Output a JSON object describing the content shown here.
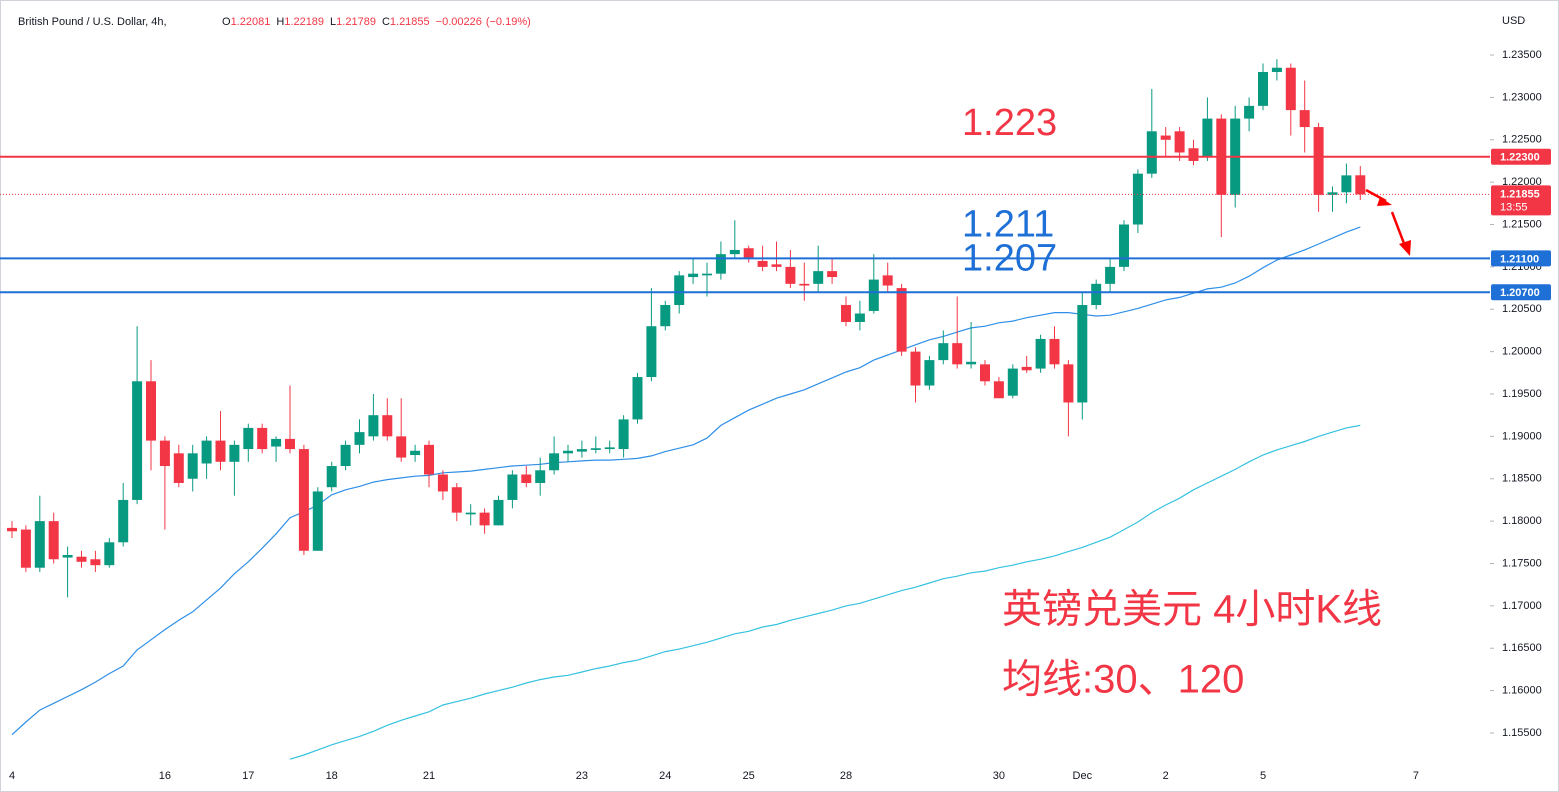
{
  "chart_data": {
    "type": "candlestick",
    "title": "British Pound / U.S. Dollar, 4h,",
    "ohlc_header": [
      {
        "label": "O",
        "value": 1.22081
      },
      {
        "label": "H",
        "value": 1.22189
      },
      {
        "label": "L",
        "value": 1.21789
      },
      {
        "label": "C",
        "value": 1.21855
      }
    ],
    "change": {
      "value": -0.00226,
      "label": "−0.00226"
    },
    "change_pct": {
      "value": -0.19,
      "label": "(−0.19%)"
    },
    "currency": "USD",
    "categories": [
      "4",
      null,
      null,
      null,
      null,
      null,
      null,
      null,
      null,
      null,
      null,
      "16",
      null,
      null,
      null,
      null,
      null,
      "17",
      null,
      null,
      null,
      null,
      null,
      "18",
      null,
      null,
      null,
      null,
      null,
      null,
      "21",
      null,
      null,
      null,
      null,
      null,
      null,
      null,
      null,
      null,
      null,
      "23",
      null,
      null,
      null,
      null,
      null,
      "24",
      null,
      null,
      null,
      null,
      null,
      "25",
      null,
      null,
      null,
      null,
      null,
      null,
      "28",
      null,
      null,
      null,
      null,
      null,
      null,
      null,
      null,
      null,
      null,
      "30",
      null,
      null,
      null,
      null,
      null,
      "Dec",
      null,
      null,
      null,
      null,
      null,
      "2",
      null,
      null,
      null,
      null,
      null,
      null,
      "5",
      null,
      null,
      null,
      null,
      null,
      null,
      null,
      null,
      null,
      null,
      "7"
    ],
    "open": [
      1.1792,
      1.179,
      1.1745,
      1.18,
      1.1757,
      1.1758,
      1.1755,
      1.1748,
      1.1775,
      1.1825,
      1.1965,
      1.1895,
      1.188,
      1.185,
      1.1868,
      1.1895,
      1.187,
      1.1885,
      1.191,
      1.1888,
      1.1897,
      1.1885,
      1.1765,
      1.184,
      1.1865,
      1.189,
      1.19,
      1.1925,
      1.19,
      1.1878,
      1.189,
      1.1855,
      1.184,
      1.1808,
      1.181,
      1.1795,
      1.1825,
      1.1855,
      1.1845,
      1.186,
      1.188,
      1.1882,
      1.1884,
      1.1885,
      1.1885,
      1.192,
      1.197,
      1.203,
      1.2055,
      1.2088,
      1.209,
      1.2092,
      1.2115,
      1.2122,
      1.2107,
      1.2103,
      1.21,
      1.208,
      1.208,
      1.2095,
      1.2055,
      1.2035,
      1.2048,
      1.209,
      1.2075,
      1.2,
      1.196,
      1.199,
      1.201,
      1.1985,
      1.1985,
      1.1965,
      1.1948,
      1.1982,
      1.198,
      1.2015,
      1.1985,
      1.194,
      1.2055,
      1.208,
      1.21,
      1.215,
      1.221,
      1.2255,
      1.226,
      1.224,
      1.223,
      1.2275,
      1.2185,
      1.2275,
      1.229,
      1.233,
      1.2335,
      1.2285,
      1.2265,
      1.2185,
      1.2188,
      1.22081,
      null,
      null,
      null,
      null
    ],
    "high": [
      1.18,
      1.1795,
      1.183,
      1.181,
      1.177,
      1.1765,
      1.1765,
      1.178,
      1.1845,
      1.203,
      1.199,
      1.19,
      1.189,
      1.189,
      1.19,
      1.193,
      1.1895,
      1.1915,
      1.1915,
      1.19,
      1.196,
      1.189,
      1.184,
      1.187,
      1.1895,
      1.192,
      1.195,
      1.1945,
      1.1945,
      1.189,
      1.1895,
      1.186,
      1.1845,
      1.182,
      1.1815,
      1.183,
      1.186,
      1.1865,
      1.1875,
      1.19,
      1.189,
      1.1895,
      1.19,
      1.1895,
      1.1925,
      1.1975,
      1.2075,
      1.206,
      1.2095,
      1.211,
      1.2105,
      1.213,
      1.2155,
      1.2125,
      1.2125,
      1.213,
      1.212,
      1.2105,
      1.2125,
      1.211,
      1.2065,
      1.206,
      1.2115,
      1.2105,
      1.208,
      1.2005,
      1.1995,
      1.2025,
      1.2065,
      1.2035,
      1.199,
      1.197,
      1.1985,
      1.1995,
      1.202,
      1.203,
      1.199,
      1.207,
      1.2085,
      1.211,
      1.2155,
      1.2215,
      1.231,
      1.2265,
      1.2265,
      1.225,
      1.23,
      1.228,
      1.229,
      1.23,
      1.234,
      1.2345,
      1.234,
      1.232,
      1.227,
      1.2195,
      1.2222,
      1.22189,
      null,
      null,
      null,
      null
    ],
    "low": [
      1.178,
      1.174,
      1.174,
      1.175,
      1.171,
      1.1745,
      1.174,
      1.1745,
      1.177,
      1.182,
      1.186,
      1.179,
      1.184,
      1.1835,
      1.185,
      1.186,
      1.183,
      1.187,
      1.188,
      1.187,
      1.188,
      1.176,
      1.1765,
      1.1835,
      1.186,
      1.188,
      1.1895,
      1.1895,
      1.187,
      1.187,
      1.184,
      1.1825,
      1.18,
      1.1795,
      1.1785,
      1.1795,
      1.1815,
      1.184,
      1.183,
      1.1855,
      1.187,
      1.1875,
      1.188,
      1.188,
      1.1875,
      1.1915,
      1.1965,
      1.2025,
      1.2045,
      1.208,
      1.2065,
      1.2085,
      1.211,
      1.2105,
      1.2095,
      1.2095,
      1.2075,
      1.206,
      1.207,
      1.208,
      1.203,
      1.2025,
      1.2045,
      1.207,
      1.1995,
      1.194,
      1.1955,
      1.1985,
      1.198,
      1.198,
      1.196,
      1.1945,
      1.1945,
      1.1975,
      1.1975,
      1.198,
      1.19,
      1.192,
      1.205,
      1.207,
      1.2095,
      1.214,
      1.2205,
      1.223,
      1.2225,
      1.222,
      1.2225,
      1.2135,
      1.217,
      1.226,
      1.2285,
      1.232,
      1.2255,
      1.2235,
      1.2165,
      1.2165,
      1.2175,
      1.21789,
      null,
      null,
      null,
      null
    ],
    "close": [
      1.1788,
      1.1745,
      1.18,
      1.1755,
      1.176,
      1.1752,
      1.1748,
      1.1775,
      1.1825,
      1.1965,
      1.1895,
      1.1865,
      1.1845,
      1.188,
      1.1895,
      1.187,
      1.189,
      1.191,
      1.1885,
      1.1897,
      1.1885,
      1.1765,
      1.1835,
      1.1865,
      1.189,
      1.1905,
      1.1925,
      1.19,
      1.1875,
      1.1883,
      1.1855,
      1.1835,
      1.181,
      1.181,
      1.1795,
      1.1825,
      1.1855,
      1.1845,
      1.186,
      1.188,
      1.1883,
      1.1885,
      1.1886,
      1.1887,
      1.192,
      1.197,
      1.203,
      1.2055,
      1.209,
      1.2092,
      1.2092,
      1.2115,
      1.212,
      1.211,
      1.21,
      1.21,
      1.208,
      1.2078,
      1.2095,
      1.2088,
      1.2035,
      1.2045,
      1.2085,
      1.2078,
      1.2,
      1.196,
      1.199,
      1.201,
      1.1985,
      1.1988,
      1.1965,
      1.1945,
      1.198,
      1.1978,
      1.2015,
      1.1985,
      1.194,
      1.2055,
      1.208,
      1.21,
      1.215,
      1.221,
      1.226,
      1.225,
      1.2235,
      1.2225,
      1.2275,
      1.2185,
      1.2275,
      1.229,
      1.233,
      1.2335,
      1.2285,
      1.2265,
      1.2185,
      1.2188,
      1.2208,
      1.21855,
      null,
      null,
      null,
      null
    ],
    "up_color": "#089981",
    "down_color": "#f23645",
    "moving_averages": [
      {
        "color": "#2f8fe8",
        "values": [
          1.1548,
          1.1563,
          1.1577,
          1.1585,
          1.1593,
          1.1601,
          1.161,
          1.162,
          1.1629,
          1.1648,
          1.166,
          1.1672,
          1.1683,
          1.1693,
          1.1707,
          1.1721,
          1.1738,
          1.1752,
          1.1768,
          1.1785,
          1.1804,
          1.1811,
          1.1819,
          1.1831,
          1.1837,
          1.1841,
          1.1846,
          1.1849,
          1.1851,
          1.1853,
          1.1854,
          1.1857,
          1.1858,
          1.1859,
          1.1861,
          1.1863,
          1.1865,
          1.1866,
          1.1867,
          1.1869,
          1.187,
          1.1871,
          1.1872,
          1.1872,
          1.1873,
          1.1874,
          1.1877,
          1.1882,
          1.1886,
          1.189,
          1.1898,
          1.1913,
          1.1922,
          1.1931,
          1.1938,
          1.1945,
          1.195,
          1.1955,
          1.1962,
          1.1969,
          1.1976,
          1.1981,
          1.199,
          1.1996,
          1.2002,
          1.2008,
          1.2014,
          1.2018,
          1.2023,
          1.2028,
          1.203,
          1.2034,
          1.2036,
          1.204,
          1.2043,
          1.2046,
          1.2046,
          1.2044,
          1.2042,
          1.2043,
          1.2047,
          1.2051,
          1.2056,
          1.2061,
          1.2064,
          1.2069,
          1.2074,
          1.2076,
          1.2081,
          1.2089,
          1.2099,
          1.2108,
          1.2114,
          1.212,
          1.2127,
          1.2134,
          1.2141,
          1.2147,
          null,
          null,
          null,
          null
        ]
      },
      {
        "color": "#36c2e0",
        "values": [
          null,
          null,
          null,
          null,
          null,
          null,
          null,
          null,
          null,
          null,
          null,
          null,
          null,
          null,
          null,
          null,
          null,
          null,
          null,
          null,
          1.1519,
          1.1524,
          1.153,
          1.1536,
          1.1541,
          1.1546,
          1.1552,
          1.1559,
          1.1565,
          1.157,
          1.1575,
          1.1583,
          1.1587,
          1.1591,
          1.1596,
          1.16,
          1.1604,
          1.1609,
          1.1613,
          1.1616,
          1.1618,
          1.1622,
          1.1626,
          1.1629,
          1.1633,
          1.1636,
          1.1641,
          1.1646,
          1.1649,
          1.1653,
          1.1657,
          1.1662,
          1.1667,
          1.167,
          1.1675,
          1.1678,
          1.1683,
          1.1687,
          1.1691,
          1.1695,
          1.17,
          1.1703,
          1.1708,
          1.1713,
          1.1718,
          1.1722,
          1.1727,
          1.1732,
          1.1735,
          1.1739,
          1.1741,
          1.1745,
          1.1748,
          1.1752,
          1.1755,
          1.1759,
          1.1764,
          1.1769,
          1.1775,
          1.1781,
          1.179,
          1.1799,
          1.181,
          1.1819,
          1.1827,
          1.1837,
          1.1845,
          1.1853,
          1.1861,
          1.187,
          1.1878,
          1.1884,
          1.1889,
          1.1894,
          1.19,
          1.1905,
          1.191,
          1.1913,
          null,
          null,
          null,
          null
        ]
      }
    ],
    "levels": [
      {
        "value": 1.223,
        "axis_label": "1.22300",
        "annotation": "1.223",
        "color": "#f23645"
      },
      {
        "value": 1.211,
        "axis_label": "1.21100",
        "annotation": "1.211",
        "color": "#1e6fd6"
      },
      {
        "value": 1.207,
        "axis_label": "1.20700",
        "annotation": "1.207",
        "color": "#1e6fd6"
      }
    ],
    "last_price": {
      "value": 1.21855,
      "countdown": "13:55",
      "color": "#f23645"
    },
    "notes": [
      "英镑兑美元 4小时K线",
      "均线:30、120"
    ],
    "ylim": [
      1.15122,
      1.24055
    ],
    "yticks": [
      {
        "value": 1.155,
        "label": "1.15500"
      },
      {
        "value": 1.16,
        "label": "1.16000"
      },
      {
        "value": 1.165,
        "label": "1.16500"
      },
      {
        "value": 1.17,
        "label": "1.17000"
      },
      {
        "value": 1.175,
        "label": "1.17500"
      },
      {
        "value": 1.18,
        "label": "1.18000"
      },
      {
        "value": 1.185,
        "label": "1.18500"
      },
      {
        "value": 1.19,
        "label": "1.19000"
      },
      {
        "value": 1.195,
        "label": "1.19500"
      },
      {
        "value": 1.2,
        "label": "1.20000"
      },
      {
        "value": 1.205,
        "label": "1.20500"
      },
      {
        "value": 1.21,
        "label": "1.21000"
      },
      {
        "value": 1.215,
        "label": "1.21500"
      },
      {
        "value": 1.22,
        "label": "1.22000"
      },
      {
        "value": 1.225,
        "label": "1.22500"
      },
      {
        "value": 1.23,
        "label": "1.23000"
      },
      {
        "value": 1.235,
        "label": "1.23500"
      }
    ],
    "grid": false
  }
}
